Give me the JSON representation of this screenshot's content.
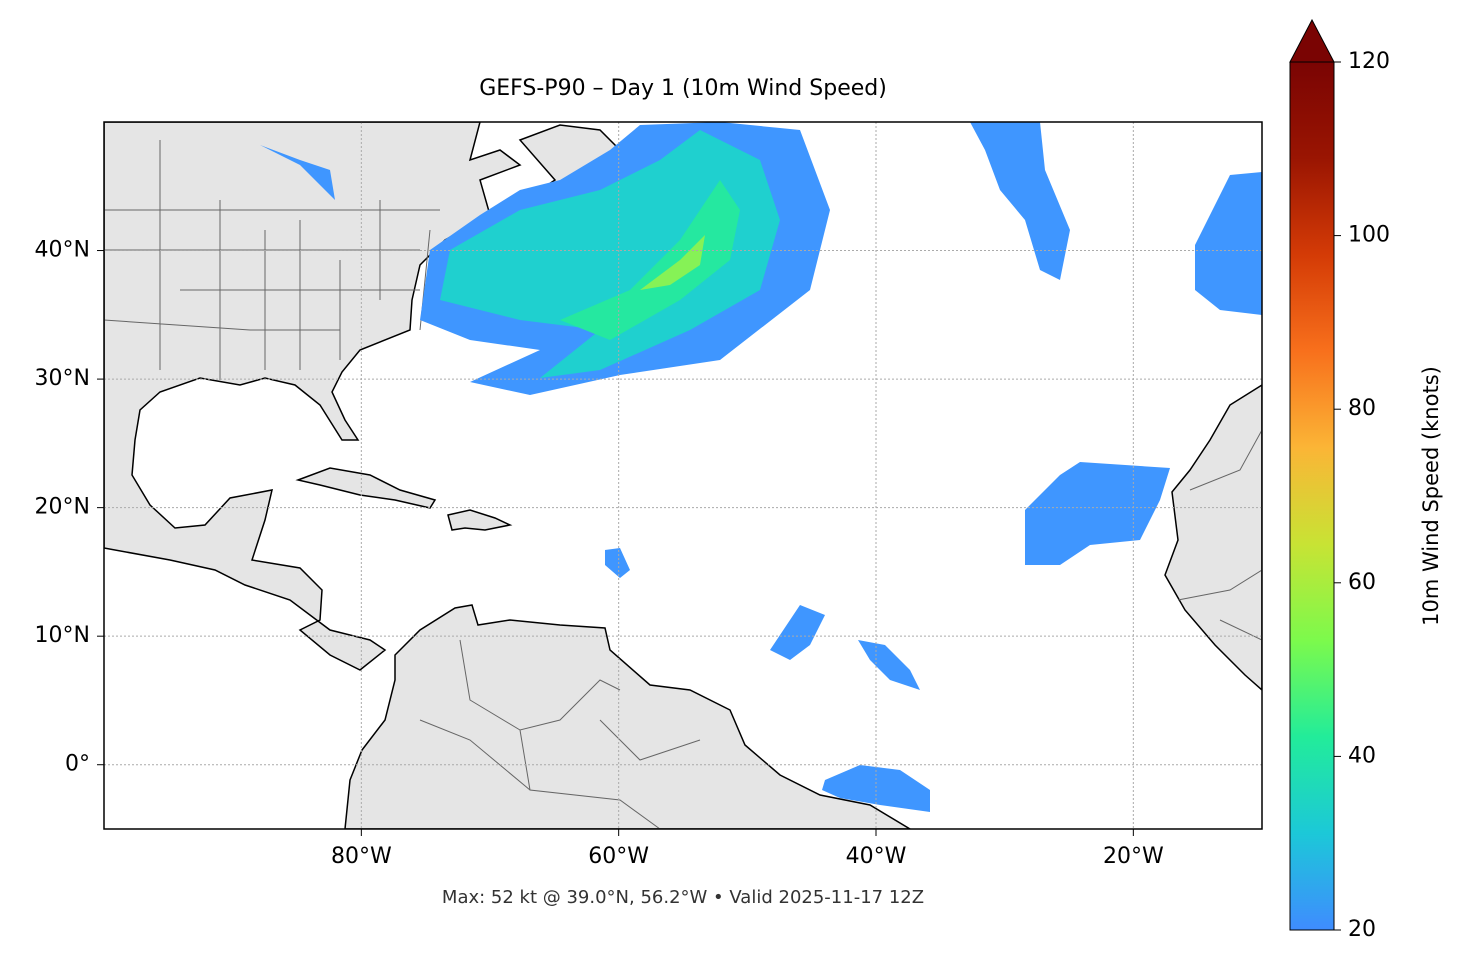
{
  "chart_data": {
    "type": "map",
    "title": "GEFS-P90 – Day 1 (10m Wind Speed)",
    "caption": "Max: 52 kt @ 39.0°N, 56.2°W • Valid 2025-11-17 12Z",
    "xlim": [
      -100,
      -10
    ],
    "ylim": [
      -5,
      50
    ],
    "xticks": [
      {
        "value": -80,
        "label": "80°W"
      },
      {
        "value": -60,
        "label": "60°W"
      },
      {
        "value": -40,
        "label": "40°W"
      },
      {
        "value": -20,
        "label": "20°W"
      }
    ],
    "yticks": [
      {
        "value": 0,
        "label": "0°"
      },
      {
        "value": 10,
        "label": "10°N"
      },
      {
        "value": 20,
        "label": "20°N"
      },
      {
        "value": 30,
        "label": "30°N"
      },
      {
        "value": 40,
        "label": "40°N"
      }
    ],
    "grid": true,
    "colorbar": {
      "label": "10m Wind Speed (knots)",
      "lim": [
        20,
        120
      ],
      "ticks": [
        20,
        40,
        60,
        80,
        100,
        120
      ],
      "colors": [
        "#3f8cff",
        "#1cc8d8",
        "#22ec9a",
        "#7cfa4c",
        "#c8e334",
        "#fbb536",
        "#f8701c",
        "#d43b06",
        "#9a1502",
        "#7a0403"
      ]
    }
  }
}
